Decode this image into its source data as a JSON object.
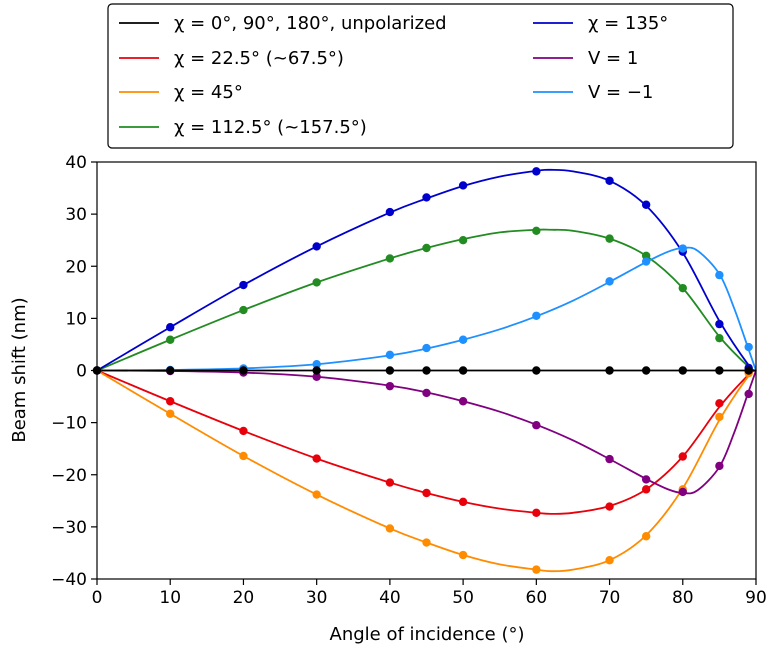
{
  "chart_data": {
    "type": "line",
    "xlabel": "Angle of incidence (°)",
    "ylabel": "Beam shift (nm)",
    "xlim": [
      0,
      90
    ],
    "ylim": [
      -40,
      40
    ],
    "xticks": [
      0,
      10,
      20,
      30,
      40,
      50,
      60,
      70,
      80,
      90
    ],
    "yticks": [
      -40,
      -30,
      -20,
      -10,
      0,
      10,
      20,
      30,
      40
    ],
    "grid": false,
    "legend_position": "top",
    "marker_x": [
      0,
      10,
      20,
      30,
      40,
      45,
      50,
      60,
      70,
      75,
      80,
      85,
      89
    ],
    "series": [
      {
        "name": "χ = 0°, 90°, 180°, unpolarized",
        "color": "#000000",
        "line_x": [
          0,
          10,
          20,
          30,
          40,
          50,
          60,
          70,
          80,
          90
        ],
        "line_y": [
          0,
          0,
          0,
          0,
          0,
          0,
          0,
          0,
          0,
          0
        ],
        "markers": [
          0,
          0,
          0,
          0,
          0,
          0,
          0,
          0,
          0,
          0,
          0,
          0,
          0
        ]
      },
      {
        "name": "χ = 22.5° (~67.5°)",
        "color": "#e8000b",
        "line_x": [
          0,
          10,
          20,
          30,
          40,
          45,
          50,
          55,
          60,
          62,
          65,
          70,
          75,
          80,
          85,
          89,
          90
        ],
        "line_y": [
          0,
          -5.9,
          -11.6,
          -16.9,
          -21.5,
          -23.5,
          -25.2,
          -26.5,
          -27.3,
          -27.5,
          -27.3,
          -26.0,
          -22.8,
          -16.5,
          -7.0,
          -0.8,
          0
        ],
        "markers": [
          0,
          -5.9,
          -11.6,
          -16.9,
          -21.5,
          -23.5,
          -25.2,
          -27.3,
          -26.1,
          -22.8,
          -16.5,
          -6.3,
          -0.3
        ]
      },
      {
        "name": "χ = 45°",
        "color": "#ff8c00",
        "line_x": [
          0,
          10,
          20,
          30,
          40,
          45,
          50,
          55,
          60,
          62,
          65,
          70,
          75,
          80,
          85,
          89,
          90
        ],
        "line_y": [
          0,
          -8.3,
          -16.4,
          -23.8,
          -30.3,
          -33.0,
          -35.4,
          -37.2,
          -38.2,
          -38.5,
          -38.2,
          -36.4,
          -31.6,
          -22.6,
          -9.5,
          -1.0,
          0
        ],
        "markers": [
          0,
          -8.3,
          -16.4,
          -23.8,
          -30.3,
          -33.0,
          -35.4,
          -38.2,
          -36.4,
          -31.8,
          -22.8,
          -8.9,
          -0.5
        ]
      },
      {
        "name": "χ = 112.5° (~157.5°)",
        "color": "#228b22",
        "line_x": [
          0,
          10,
          20,
          30,
          40,
          45,
          50,
          55,
          60,
          62,
          65,
          70,
          75,
          80,
          85,
          89,
          90
        ],
        "line_y": [
          0,
          5.9,
          11.6,
          16.9,
          21.5,
          23.5,
          25.2,
          26.5,
          27.0,
          27.0,
          26.8,
          25.3,
          22.0,
          15.8,
          6.5,
          0.7,
          0
        ],
        "markers": [
          0,
          5.9,
          11.6,
          16.9,
          21.5,
          23.5,
          25.0,
          26.8,
          25.3,
          22.0,
          15.8,
          6.2,
          0.3
        ]
      },
      {
        "name": "χ = 135°",
        "color": "#0000cd",
        "line_x": [
          0,
          10,
          20,
          30,
          40,
          45,
          50,
          55,
          60,
          62,
          65,
          70,
          75,
          80,
          85,
          89,
          90
        ],
        "line_y": [
          0,
          8.3,
          16.4,
          23.8,
          30.3,
          33.0,
          35.4,
          37.2,
          38.3,
          38.5,
          38.2,
          36.4,
          31.6,
          22.6,
          9.5,
          1.0,
          0
        ],
        "markers": [
          0,
          8.3,
          16.4,
          23.8,
          30.4,
          33.2,
          35.5,
          38.2,
          36.4,
          31.8,
          22.8,
          8.9,
          0.5
        ]
      },
      {
        "name": "V = 1",
        "color": "#800080",
        "line_x": [
          0,
          10,
          20,
          30,
          40,
          45,
          50,
          55,
          60,
          65,
          70,
          75,
          78,
          80,
          82,
          85,
          87,
          89,
          90
        ],
        "line_y": [
          0,
          -0.1,
          -0.4,
          -1.2,
          -2.9,
          -4.2,
          -5.9,
          -7.9,
          -10.4,
          -13.4,
          -17.0,
          -20.8,
          -22.8,
          -23.5,
          -23.0,
          -18.5,
          -12.0,
          -4.0,
          0
        ],
        "markers": [
          0,
          -0.1,
          -0.4,
          -1.2,
          -3.0,
          -4.3,
          -5.9,
          -10.5,
          -17.0,
          -20.9,
          -23.3,
          -18.3,
          -4.5
        ]
      },
      {
        "name": "V = −1",
        "color": "#1e90ff",
        "line_x": [
          0,
          10,
          20,
          30,
          40,
          45,
          50,
          55,
          60,
          65,
          70,
          75,
          78,
          80,
          82,
          85,
          87,
          89,
          90
        ],
        "line_y": [
          0,
          0.1,
          0.4,
          1.2,
          2.9,
          4.2,
          5.9,
          7.9,
          10.4,
          13.4,
          17.0,
          20.8,
          22.8,
          23.5,
          23.0,
          18.5,
          12.0,
          4.0,
          0
        ],
        "markers": [
          0,
          0.1,
          0.4,
          1.2,
          3.0,
          4.3,
          5.9,
          10.5,
          17.1,
          20.9,
          23.4,
          18.3,
          4.5
        ]
      }
    ]
  }
}
